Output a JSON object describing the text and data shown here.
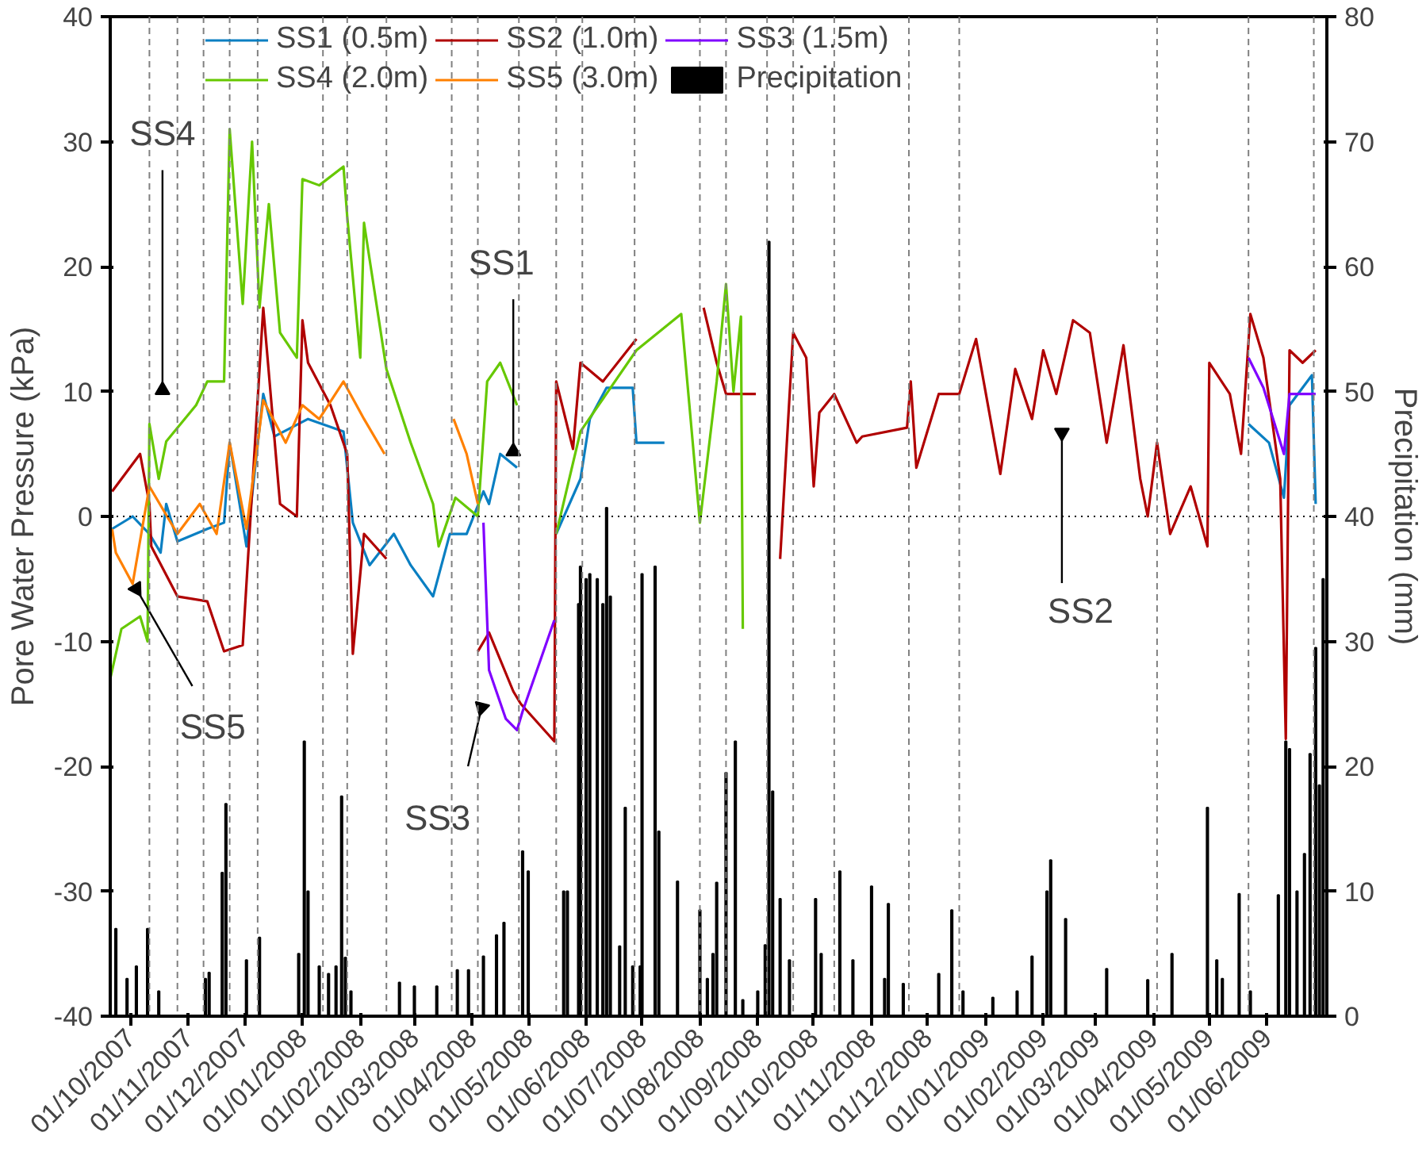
{
  "chart_data": {
    "type": "line",
    "ylabel": "Pore Water Pressure (kPa)",
    "y2label": "Precipitation (mm)",
    "xlim": [
      "2007-09-20",
      "2009-07-03"
    ],
    "xticks": [
      {
        "value": "2007-10-01",
        "label": "01/10/2007"
      },
      {
        "value": "2007-11-01",
        "label": "01/11/2007"
      },
      {
        "value": "2007-12-01",
        "label": "01/12/2007"
      },
      {
        "value": "2008-01-01",
        "label": "01/01/2008"
      },
      {
        "value": "2008-02-01",
        "label": "01/02/2008"
      },
      {
        "value": "2008-03-01",
        "label": "01/03/2008"
      },
      {
        "value": "2008-04-01",
        "label": "01/04/2008"
      },
      {
        "value": "2008-05-01",
        "label": "01/05/2008"
      },
      {
        "value": "2008-06-01",
        "label": "01/06/2008"
      },
      {
        "value": "2008-07-01",
        "label": "01/07/2008"
      },
      {
        "value": "2008-08-01",
        "label": "01/08/2008"
      },
      {
        "value": "2008-09-01",
        "label": "01/09/2008"
      },
      {
        "value": "2008-10-01",
        "label": "01/10/2008"
      },
      {
        "value": "2008-11-01",
        "label": "01/11/2008"
      },
      {
        "value": "2008-12-01",
        "label": "01/12/2008"
      },
      {
        "value": "2009-01-01",
        "label": "01/01/2009"
      },
      {
        "value": "2009-02-01",
        "label": "01/02/2009"
      },
      {
        "value": "2009-03-01",
        "label": "01/03/2009"
      },
      {
        "value": "2009-04-01",
        "label": "01/04/2009"
      },
      {
        "value": "2009-05-01",
        "label": "01/05/2009"
      },
      {
        "value": "2009-06-01",
        "label": "01/06/2009"
      }
    ],
    "ylim": [
      -40,
      40
    ],
    "yticks": [
      -40,
      -30,
      -20,
      -10,
      0,
      10,
      20,
      30,
      40
    ],
    "y2lim": [
      0,
      80
    ],
    "y2ticks": [
      0,
      10,
      20,
      30,
      40,
      50,
      60,
      70,
      80
    ],
    "grid": false,
    "legend": "top",
    "series": [
      {
        "name": "Precipitation",
        "type": "bar",
        "axis": "y2",
        "color": "#000000",
        "x": [
          "2007-09-23",
          "2007-09-29",
          "2007-10-04",
          "2007-10-10",
          "2007-10-16",
          "2007-11-10",
          "2007-11-12",
          "2007-11-19",
          "2007-11-21",
          "2007-12-02",
          "2007-12-09",
          "2007-12-30",
          "2008-01-02",
          "2008-01-04",
          "2008-01-10",
          "2008-01-15",
          "2008-01-19",
          "2008-01-22",
          "2008-01-24",
          "2008-01-27",
          "2008-02-22",
          "2008-03-01",
          "2008-03-13",
          "2008-03-24",
          "2008-03-30",
          "2008-04-07",
          "2008-04-14",
          "2008-04-18",
          "2008-04-28",
          "2008-05-01",
          "2008-05-20",
          "2008-05-22",
          "2008-05-28",
          "2008-05-29",
          "2008-06-01",
          "2008-06-03",
          "2008-06-07",
          "2008-06-10",
          "2008-06-12",
          "2008-06-14",
          "2008-06-19",
          "2008-06-22",
          "2008-06-26",
          "2008-06-30",
          "2008-07-01",
          "2008-07-08",
          "2008-07-10",
          "2008-07-20",
          "2008-08-01",
          "2008-08-05",
          "2008-08-08",
          "2008-08-10",
          "2008-08-15",
          "2008-08-20",
          "2008-08-24",
          "2008-09-01",
          "2008-09-05",
          "2008-09-07",
          "2008-09-09",
          "2008-09-13",
          "2008-09-18",
          "2008-10-02",
          "2008-10-05",
          "2008-10-15",
          "2008-10-22",
          "2008-11-01",
          "2008-11-08",
          "2008-11-10",
          "2008-11-18",
          "2008-12-07",
          "2008-12-14",
          "2008-12-20",
          "2009-01-05",
          "2009-01-18",
          "2009-01-26",
          "2009-02-03",
          "2009-02-05",
          "2009-02-13",
          "2009-03-07",
          "2009-03-29",
          "2009-04-11",
          "2009-04-30",
          "2009-05-05",
          "2009-05-08",
          "2009-05-17",
          "2009-05-23",
          "2009-06-07",
          "2009-06-11",
          "2009-06-13",
          "2009-06-17",
          "2009-06-21",
          "2009-06-24",
          "2009-06-27",
          "2009-06-29",
          "2009-07-01"
        ],
        "values": [
          7,
          3,
          4,
          7,
          2,
          3,
          3.5,
          11.5,
          17,
          4.5,
          6.3,
          5,
          22,
          10,
          4,
          3.4,
          4,
          17.6,
          4.7,
          2,
          2.7,
          2.4,
          2.4,
          3.7,
          3.7,
          4.8,
          6.5,
          7.5,
          13.2,
          11.6,
          10,
          10,
          33,
          36,
          35,
          35.4,
          35,
          33,
          40.7,
          33.6,
          5.6,
          16.7,
          4,
          4,
          35.4,
          36,
          14.8,
          10.8,
          8.5,
          3,
          5,
          10.7,
          19.5,
          22,
          1.3,
          2,
          5.7,
          62,
          18,
          9.4,
          4.5,
          9.4,
          5,
          11.6,
          4.5,
          10.4,
          3,
          9,
          2.6,
          3.4,
          8.5,
          2,
          1.5,
          2,
          4.8,
          10,
          12.5,
          7.8,
          3.8,
          2.9,
          5,
          16.7,
          4.5,
          3,
          9.8,
          2,
          9.7,
          22,
          21.4,
          10,
          13,
          21,
          29.5,
          18.5,
          35
        ]
      },
      {
        "name": "SS1 (0.5m)",
        "color": "#0a7fc2",
        "x": [
          "2007-09-21",
          "2007-10-02",
          "2007-10-11",
          "2007-10-17",
          "2007-10-20",
          "2007-10-26",
          "2007-11-11",
          "2007-11-20",
          "2007-11-23",
          "2007-12-02",
          "2007-12-11",
          "2007-12-17",
          "2008-01-04",
          "2008-01-23",
          "2008-01-28",
          "2008-02-06",
          "2008-02-19",
          "2008-02-28",
          "2008-03-11",
          "2008-03-20",
          "2008-03-29",
          "2008-04-07",
          "2008-04-10",
          "2008-04-16",
          "2008-04-25",
          "2008-05-05",
          "2008-05-16",
          "2008-05-29",
          "2008-06-03",
          "2008-06-12",
          "2008-06-26",
          "2008-06-28",
          "2008-07-13",
          "2008-08-01",
          "2009-05-22",
          "2009-06-02",
          "2009-06-10",
          "2009-06-13",
          "2009-06-25",
          "2009-06-27"
        ],
        "values": [
          -1,
          0,
          -1.4,
          -2.9,
          1,
          -2,
          -1,
          -0.5,
          5.9,
          -2.4,
          9.8,
          6.4,
          7.8,
          6.8,
          -0.5,
          -3.9,
          -1.4,
          -3.9,
          -6.4,
          -1.4,
          -1.4,
          2,
          1,
          5,
          3.9,
          null,
          -1.4,
          3,
          7.8,
          10.3,
          10.3,
          5.9,
          5.9,
          null,
          7.4,
          5.9,
          1.5,
          8.9,
          11.3,
          1
        ]
      },
      {
        "name": "SS2 (1.0m)",
        "color": "#b00000",
        "x": [
          "2007-09-21",
          "2007-09-26",
          "2007-10-06",
          "2007-10-11",
          "2007-10-12",
          "2007-10-26",
          "2007-11-11",
          "2007-11-20",
          "2007-11-30",
          "2007-12-11",
          "2007-12-20",
          "2007-12-29",
          "2008-01-01",
          "2008-01-04",
          "2008-01-16",
          "2008-01-25",
          "2008-01-28",
          "2008-02-03",
          "2008-02-15",
          "2008-03-01",
          "2008-04-04",
          "2008-04-10",
          "2008-04-23",
          "2008-04-27",
          "2008-05-15",
          "2008-05-16",
          "2008-05-25",
          "2008-05-29",
          "2008-06-10",
          "2008-06-28",
          "2008-07-15",
          "2008-08-03",
          "2008-08-10",
          "2008-08-15",
          "2008-08-31",
          "2008-09-05",
          "2008-09-13",
          "2008-09-20",
          "2008-09-27",
          "2008-10-01",
          "2008-10-04",
          "2008-10-12",
          "2008-10-24",
          "2008-10-27",
          "2008-11-20",
          "2008-11-22",
          "2008-11-25",
          "2008-12-07",
          "2008-12-18",
          "2008-12-27",
          "2009-01-09",
          "2009-01-17",
          "2009-01-26",
          "2009-02-01",
          "2009-02-08",
          "2009-02-17",
          "2009-02-26",
          "2009-03-07",
          "2009-03-16",
          "2009-03-25",
          "2009-03-29",
          "2009-04-03",
          "2009-04-10",
          "2009-04-21",
          "2009-04-30",
          "2009-05-01",
          "2009-05-12",
          "2009-05-18",
          "2009-05-23",
          "2009-05-30",
          "2009-06-08",
          "2009-06-11",
          "2009-06-13",
          "2009-06-20",
          "2009-06-27"
        ],
        "values": [
          2,
          3,
          5,
          1,
          -2.4,
          -6.4,
          -6.8,
          -10.8,
          -10.3,
          16.7,
          1,
          0,
          15.7,
          12.3,
          8.9,
          5,
          -11,
          -1.4,
          -3.4,
          null,
          -10.8,
          -9.3,
          -14,
          -15,
          -18,
          10.8,
          5.4,
          12.3,
          10.8,
          14.2,
          null,
          16.7,
          12.3,
          9.8,
          9.8,
          null,
          -3.4,
          14.7,
          12.7,
          2.4,
          8.3,
          9.8,
          5.9,
          6.4,
          7.1,
          10.8,
          3.9,
          9.8,
          9.8,
          14.2,
          3.4,
          11.8,
          7.8,
          13.3,
          9.8,
          15.7,
          14.7,
          5.9,
          13.7,
          3,
          0,
          5.9,
          -1.4,
          2.4,
          -2.4,
          12.3,
          9.8,
          5,
          16.2,
          12.7,
          3,
          -17.8,
          13.3,
          12.3,
          13.3
        ]
      },
      {
        "name": "SS3 (1.5m)",
        "color": "#8000ff",
        "x": [
          "2008-04-07",
          "2008-04-10",
          "2008-04-19",
          "2008-04-25",
          "2008-04-28",
          "2008-05-15",
          "2008-06-01",
          "2009-05-22",
          "2009-05-30",
          "2009-06-10",
          "2009-06-13",
          "2009-06-27"
        ],
        "values": [
          -0.5,
          -12.3,
          -16.2,
          -17.1,
          -15.6,
          -8.3,
          null,
          12.7,
          10.3,
          5,
          9.8,
          9.8
        ]
      },
      {
        "name": "SS4 (2.0m)",
        "color": "#66c800",
        "x": [
          "2007-09-20",
          "2007-09-26",
          "2007-10-06",
          "2007-10-10",
          "2007-10-11",
          "2007-10-16",
          "2007-10-20",
          "2007-11-05",
          "2007-11-11",
          "2007-11-20",
          "2007-11-23",
          "2007-11-30",
          "2007-12-05",
          "2007-12-09",
          "2007-12-14",
          "2007-12-20",
          "2007-12-29",
          "2008-01-01",
          "2008-01-10",
          "2008-01-23",
          "2008-01-25",
          "2008-02-01",
          "2008-02-03",
          "2008-02-15",
          "2008-02-28",
          "2008-03-11",
          "2008-03-14",
          "2008-03-23",
          "2008-04-04",
          "2008-04-09",
          "2008-04-16",
          "2008-04-25",
          "2008-05-05",
          "2008-05-16",
          "2008-05-29",
          "2008-06-28",
          "2008-07-22",
          "2008-08-01",
          "2008-08-10",
          "2008-08-15",
          "2008-08-19",
          "2008-08-23",
          "2008-08-24"
        ],
        "values": [
          -13,
          -9,
          -8,
          -10,
          7.4,
          3,
          6,
          8.9,
          10.8,
          10.8,
          31,
          17,
          30,
          16.7,
          25,
          14.7,
          12.7,
          27,
          26.5,
          28,
          24,
          12.7,
          23.5,
          11.8,
          5.9,
          1,
          -2.4,
          1.5,
          0,
          10.8,
          12.3,
          8.9,
          null,
          -1.4,
          6.8,
          13.3,
          16.2,
          -0.5,
          10.8,
          18.6,
          10,
          16,
          -9
        ]
      },
      {
        "name": "SS5 (3.0m)",
        "color": "#ff8000",
        "x": [
          "2007-09-21",
          "2007-09-23",
          "2007-10-02",
          "2007-10-11",
          "2007-10-26",
          "2007-11-07",
          "2007-11-16",
          "2007-11-23",
          "2007-12-02",
          "2007-12-11",
          "2007-12-23",
          "2008-01-01",
          "2008-01-10",
          "2008-01-23",
          "2008-02-03",
          "2008-02-14",
          "2008-03-01",
          "2008-03-22",
          "2008-03-29",
          "2008-04-04"
        ],
        "values": [
          -1,
          -2.9,
          -5.4,
          2.4,
          -1.4,
          1,
          -1.4,
          5.9,
          -1,
          9.3,
          5.9,
          8.9,
          7.8,
          10.8,
          7.8,
          5,
          null,
          7.8,
          5,
          1
        ]
      }
    ],
    "ref_lines": [
      {
        "axis": "y",
        "value": 0,
        "color": "#000000",
        "line_style": "dotted"
      },
      {
        "axis": "x",
        "value": "2007-10-11",
        "color": "#808080",
        "line_style": "dashed"
      },
      {
        "axis": "x",
        "value": "2007-10-26",
        "color": "#808080",
        "line_style": "dashed"
      },
      {
        "axis": "x",
        "value": "2007-11-09",
        "color": "#808080",
        "line_style": "dashed"
      },
      {
        "axis": "x",
        "value": "2007-11-23",
        "color": "#808080",
        "line_style": "dashed"
      },
      {
        "axis": "x",
        "value": "2007-12-08",
        "color": "#808080",
        "line_style": "dashed"
      },
      {
        "axis": "x",
        "value": "2008-01-12",
        "color": "#808080",
        "line_style": "dashed"
      },
      {
        "axis": "x",
        "value": "2008-01-25",
        "color": "#808080",
        "line_style": "dashed"
      },
      {
        "axis": "x",
        "value": "2008-02-15",
        "color": "#808080",
        "line_style": "dashed"
      },
      {
        "axis": "x",
        "value": "2008-03-21",
        "color": "#808080",
        "line_style": "dashed"
      },
      {
        "axis": "x",
        "value": "2008-04-04",
        "color": "#808080",
        "line_style": "dashed"
      },
      {
        "axis": "x",
        "value": "2008-04-26",
        "color": "#808080",
        "line_style": "dashed"
      },
      {
        "axis": "x",
        "value": "2008-05-16",
        "color": "#808080",
        "line_style": "dashed"
      },
      {
        "axis": "x",
        "value": "2008-05-30",
        "color": "#808080",
        "line_style": "dashed"
      },
      {
        "axis": "x",
        "value": "2008-06-27",
        "color": "#808080",
        "line_style": "dashed"
      },
      {
        "axis": "x",
        "value": "2008-08-01",
        "color": "#808080",
        "line_style": "dashed"
      },
      {
        "axis": "x",
        "value": "2008-08-15",
        "color": "#808080",
        "line_style": "dashed"
      },
      {
        "axis": "x",
        "value": "2008-09-06",
        "color": "#808080",
        "line_style": "dashed"
      },
      {
        "axis": "x",
        "value": "2008-09-20",
        "color": "#808080",
        "line_style": "dashed"
      },
      {
        "axis": "x",
        "value": "2008-10-12",
        "color": "#808080",
        "line_style": "dashed"
      },
      {
        "axis": "x",
        "value": "2008-11-21",
        "color": "#808080",
        "line_style": "dashed"
      },
      {
        "axis": "x",
        "value": "2008-12-18",
        "color": "#808080",
        "line_style": "dashed"
      },
      {
        "axis": "x",
        "value": "2009-04-03",
        "color": "#808080",
        "line_style": "dashed"
      },
      {
        "axis": "x",
        "value": "2009-05-22",
        "color": "#808080",
        "line_style": "dashed"
      },
      {
        "axis": "x",
        "value": "2009-06-26",
        "color": "#808080",
        "line_style": "dashed"
      }
    ],
    "annotations": [
      {
        "text": "SS4",
        "x": "2007-10-18",
        "y": 10.1
      },
      {
        "text": "SS1",
        "x": "2008-04-23",
        "y": 5.2
      },
      {
        "text": "SS5",
        "x": "2007-10-04",
        "y": -5.8
      },
      {
        "text": "SS3",
        "x": "2008-04-06",
        "y": -15.3
      },
      {
        "text": "SS2",
        "x": "2009-02-11",
        "y": 6.7
      }
    ]
  }
}
